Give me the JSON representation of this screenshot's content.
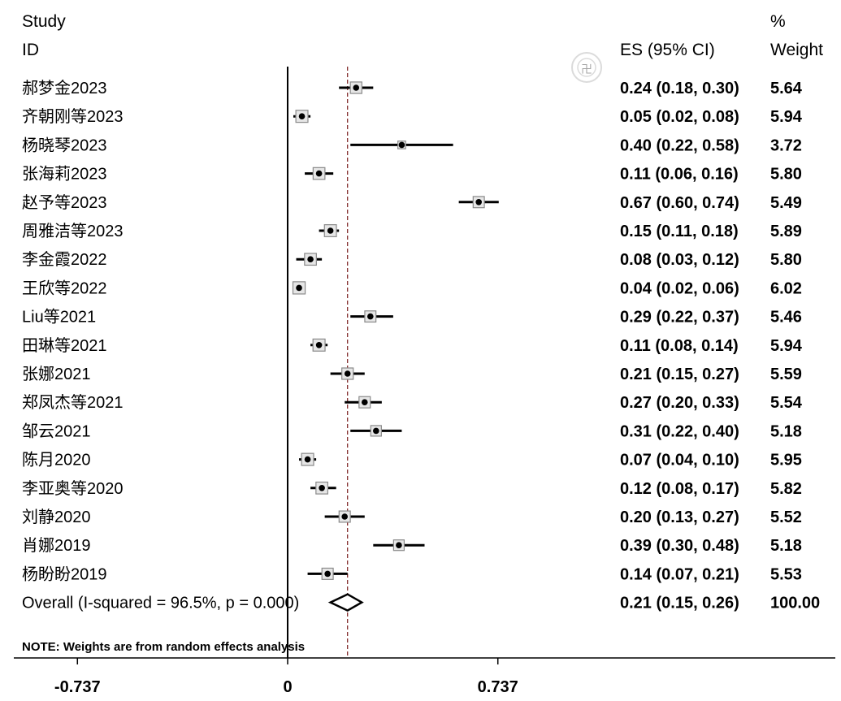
{
  "header": {
    "study": "Study",
    "id": "ID",
    "es": "ES (95% CI)",
    "weight_top": "%",
    "weight_bottom": "Weight"
  },
  "note": "NOTE: Weights are from random effects analysis",
  "chart_data": {
    "type": "forest",
    "xticks": [
      -0.737,
      0,
      0.737
    ],
    "xtick_labels": [
      "-0.737",
      "0",
      "0.737"
    ],
    "xlim": [
      -0.96,
      1.92
    ],
    "null_line": 0,
    "overall_line": 0.21,
    "studies": [
      {
        "id": "郝梦金2023",
        "es": 0.24,
        "lo": 0.18,
        "hi": 0.3,
        "es_text": "0.24 (0.18, 0.30)",
        "weight": "5.64"
      },
      {
        "id": "齐朝刚等2023",
        "es": 0.05,
        "lo": 0.02,
        "hi": 0.08,
        "es_text": "0.05 (0.02, 0.08)",
        "weight": "5.94"
      },
      {
        "id": "杨晓琴2023",
        "es": 0.4,
        "lo": 0.22,
        "hi": 0.58,
        "es_text": "0.40 (0.22, 0.58)",
        "weight": "3.72"
      },
      {
        "id": "张海莉2023",
        "es": 0.11,
        "lo": 0.06,
        "hi": 0.16,
        "es_text": "0.11 (0.06, 0.16)",
        "weight": "5.80"
      },
      {
        "id": "赵予等2023",
        "es": 0.67,
        "lo": 0.6,
        "hi": 0.74,
        "es_text": "0.67 (0.60, 0.74)",
        "weight": "5.49"
      },
      {
        "id": "周雅洁等2023",
        "es": 0.15,
        "lo": 0.11,
        "hi": 0.18,
        "es_text": "0.15 (0.11, 0.18)",
        "weight": "5.89"
      },
      {
        "id": "李金霞2022",
        "es": 0.08,
        "lo": 0.03,
        "hi": 0.12,
        "es_text": "0.08 (0.03, 0.12)",
        "weight": "5.80"
      },
      {
        "id": "王欣等2022",
        "es": 0.04,
        "lo": 0.02,
        "hi": 0.06,
        "es_text": "0.04 (0.02, 0.06)",
        "weight": "6.02"
      },
      {
        "id": "Liu等2021",
        "es": 0.29,
        "lo": 0.22,
        "hi": 0.37,
        "es_text": "0.29 (0.22, 0.37)",
        "weight": "5.46"
      },
      {
        "id": "田琳等2021",
        "es": 0.11,
        "lo": 0.08,
        "hi": 0.14,
        "es_text": "0.11 (0.08, 0.14)",
        "weight": "5.94"
      },
      {
        "id": "张娜2021",
        "es": 0.21,
        "lo": 0.15,
        "hi": 0.27,
        "es_text": "0.21 (0.15, 0.27)",
        "weight": "5.59"
      },
      {
        "id": "郑凤杰等2021",
        "es": 0.27,
        "lo": 0.2,
        "hi": 0.33,
        "es_text": "0.27 (0.20, 0.33)",
        "weight": "5.54"
      },
      {
        "id": "邹云2021",
        "es": 0.31,
        "lo": 0.22,
        "hi": 0.4,
        "es_text": "0.31 (0.22, 0.40)",
        "weight": "5.18"
      },
      {
        "id": "陈月2020",
        "es": 0.07,
        "lo": 0.04,
        "hi": 0.1,
        "es_text": "0.07 (0.04, 0.10)",
        "weight": "5.95"
      },
      {
        "id": "李亚奥等2020",
        "es": 0.12,
        "lo": 0.08,
        "hi": 0.17,
        "es_text": "0.12 (0.08, 0.17)",
        "weight": "5.82"
      },
      {
        "id": "刘静2020",
        "es": 0.2,
        "lo": 0.13,
        "hi": 0.27,
        "es_text": "0.20 (0.13, 0.27)",
        "weight": "5.52"
      },
      {
        "id": "肖娜2019",
        "es": 0.39,
        "lo": 0.3,
        "hi": 0.48,
        "es_text": "0.39 (0.30, 0.48)",
        "weight": "5.18"
      },
      {
        "id": "杨盼盼2019",
        "es": 0.14,
        "lo": 0.07,
        "hi": 0.21,
        "es_text": "0.14 (0.07, 0.21)",
        "weight": "5.53"
      }
    ],
    "overall": {
      "label": "Overall  (I-squared = 96.5%, p = 0.000)",
      "es": 0.21,
      "lo": 0.15,
      "hi": 0.26,
      "es_text": "0.21 (0.15, 0.26)",
      "weight": "100.00"
    }
  }
}
